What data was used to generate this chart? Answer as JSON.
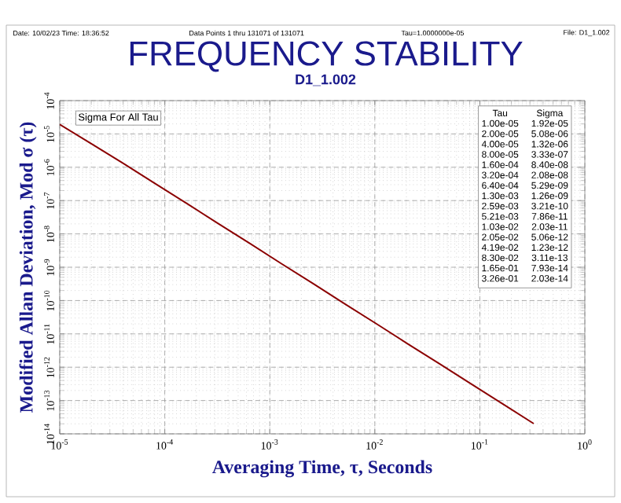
{
  "chart_data": {
    "type": "line",
    "title": "FREQUENCY STABILITY",
    "subtitle": "D1_1.002",
    "xlabel": "Averaging Time, τ, Seconds",
    "ylabel": "Modified  Allan Deviation, Mod σ (τ)",
    "annotations": [
      "Date: 10/02/23  Time: 18:36:52",
      "Data Points 1 thru 131071 of 131071",
      "Tau=1.0000000e-05",
      "File: D1_1.002",
      "Sigma For All Tau",
      "Tau",
      "Sigma",
      "1.00e-05",
      "1.92e-05",
      "2.00e-05",
      "5.08e-06",
      "4.00e-05",
      "1.32e-06",
      "8.00e-05",
      "3.33e-07",
      "1.60e-04",
      "8.40e-08",
      "3.20e-04",
      "2.08e-08",
      "6.40e-04",
      "5.29e-09",
      "1.30e-03",
      "1.26e-09",
      "2.59e-03",
      "3.21e-10",
      "5.21e-03",
      "7.86e-11",
      "1.03e-02",
      "2.03e-11",
      "2.05e-02",
      "5.06e-12",
      "4.19e-02",
      "1.23e-12",
      "8.30e-02",
      "3.11e-13",
      "1.65e-01",
      "7.93e-14",
      "3.26e-01",
      "2.03e-14"
    ],
    "series": [
      {
        "color": "#8b0000",
        "x": [
          1e-05,
          2e-05,
          4e-05,
          8e-05,
          0.00016,
          0.00032,
          0.00064,
          0.0013,
          0.00259,
          0.00521,
          0.0103,
          0.0205,
          0.0419,
          0.083,
          0.165,
          0.326
        ],
        "values": [
          1.92e-05,
          5.08e-06,
          1.32e-06,
          3.33e-07,
          8.4e-08,
          2.08e-08,
          5.29e-09,
          1.26e-09,
          3.21e-10,
          7.86e-11,
          2.03e-11,
          5.06e-12,
          1.23e-12,
          3.11e-13,
          7.93e-14,
          2.03e-14
        ]
      }
    ],
    "log": "xy",
    "grid": true,
    "marker": "none",
    "line_style": "solid",
    "xlim": [
      1e-05,
      1
    ],
    "xticks": [
      {
        "value": 1e-05,
        "label": "10$^{-5}$"
      },
      {
        "value": 0.0001,
        "label": "10$^{-4}$"
      },
      {
        "value": 0.001,
        "label": "10$^{-3}$"
      },
      {
        "value": 0.01,
        "label": "10$^{-2}$"
      },
      {
        "value": 0.1,
        "label": "10$^{-1}$"
      },
      {
        "value": 1,
        "label": "10$^{0}$"
      }
    ],
    "ylim": [
      1e-14,
      0.0001
    ],
    "yticks": [
      {
        "value": 1e-14,
        "label": "10$^{-14}$"
      },
      {
        "value": 1e-13,
        "label": "10$^{-13}$"
      },
      {
        "value": 1e-12,
        "label": "10$^{-12}$"
      },
      {
        "value": 1e-11,
        "label": "10$^{-11}$"
      },
      {
        "value": 1e-10,
        "label": "10$^{-10}$"
      },
      {
        "value": 1e-09,
        "label": "10$^{-9}$"
      },
      {
        "value": 1e-08,
        "label": "10$^{-8}$"
      },
      {
        "value": 1e-07,
        "label": "10$^{-7}$"
      },
      {
        "value": 1e-06,
        "label": "10$^{-6}$"
      },
      {
        "value": 1e-05,
        "label": "10$^{-5}$"
      },
      {
        "value": 0.0001,
        "label": "10$^{-4}$"
      }
    ]
  }
}
